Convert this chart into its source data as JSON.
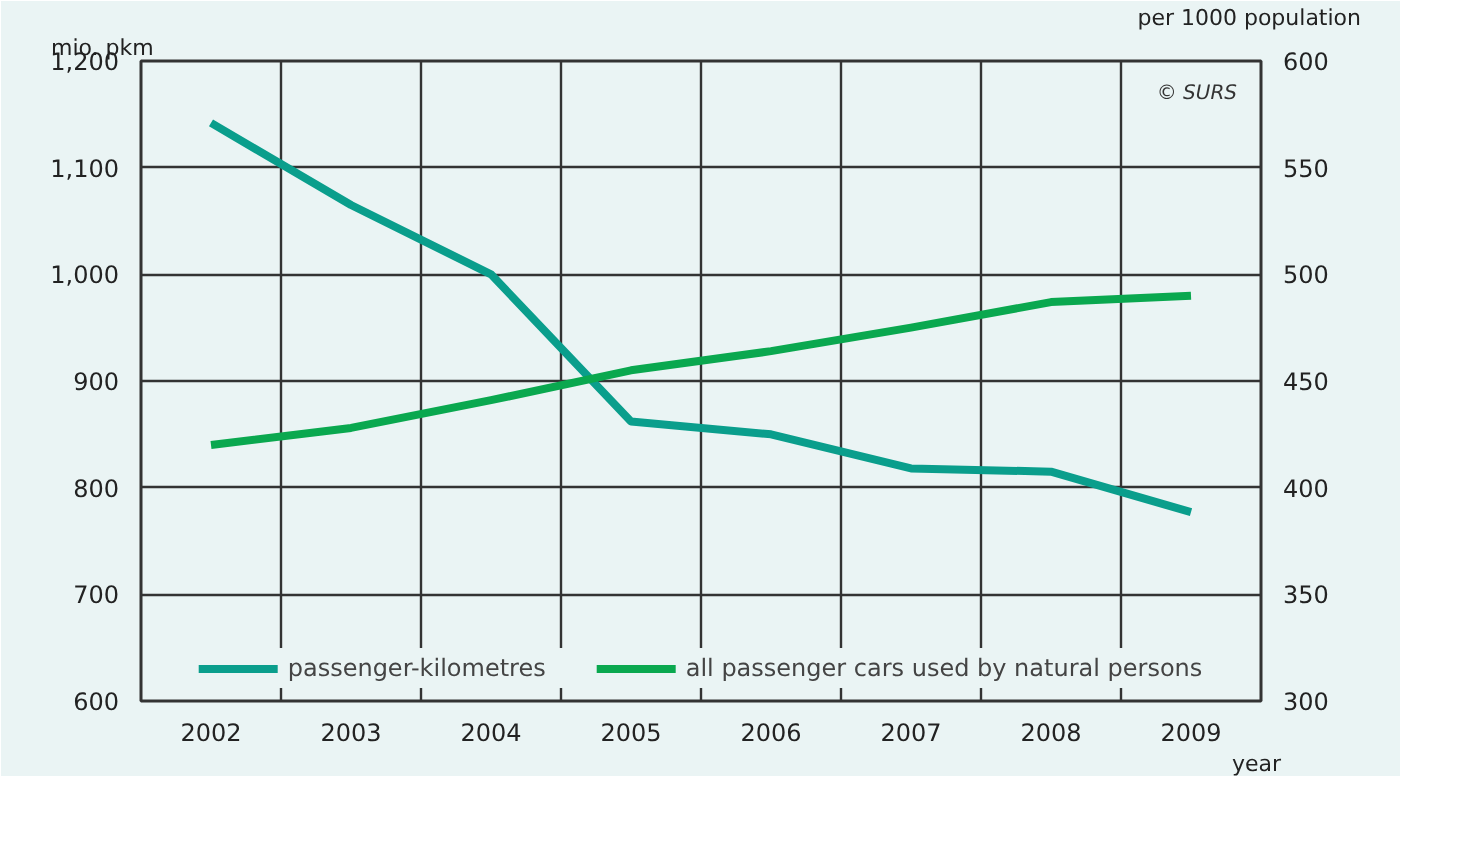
{
  "chart_data": {
    "type": "line",
    "categories": [
      "2002",
      "2003",
      "2004",
      "2005",
      "2006",
      "2007",
      "2008",
      "2009"
    ],
    "series": [
      {
        "name": "passenger-kilometres",
        "color": "#0a9e8c",
        "values": [
          1142,
          1065,
          1000,
          862,
          850,
          818,
          815,
          777
        ]
      },
      {
        "name": "all passenger cars used by natural persons",
        "color": "#0aa84f",
        "axis": "y2",
        "values": [
          420,
          428,
          441,
          455,
          464,
          475,
          487,
          490
        ]
      }
    ],
    "ylabel": "mio. pkm",
    "y2label": "per 1000 population",
    "xlabel": "year",
    "ylim": [
      600,
      1200
    ],
    "yticks": [
      {
        "value": 600,
        "label": "600"
      },
      {
        "value": 700,
        "label": "700"
      },
      {
        "value": 800,
        "label": "800"
      },
      {
        "value": 900,
        "label": "900"
      },
      {
        "value": 1000,
        "label": "1,000"
      },
      {
        "value": 1100,
        "label": "1,100"
      },
      {
        "value": 1200,
        "label": "1,200"
      }
    ],
    "y2lim": [
      300,
      600
    ],
    "y2ticks": [
      300,
      350,
      400,
      450,
      500,
      550,
      600
    ],
    "annotations": [
      "© SURS"
    ],
    "grid": true,
    "legend": "bottom",
    "marker": "none",
    "line_style": "solid"
  }
}
